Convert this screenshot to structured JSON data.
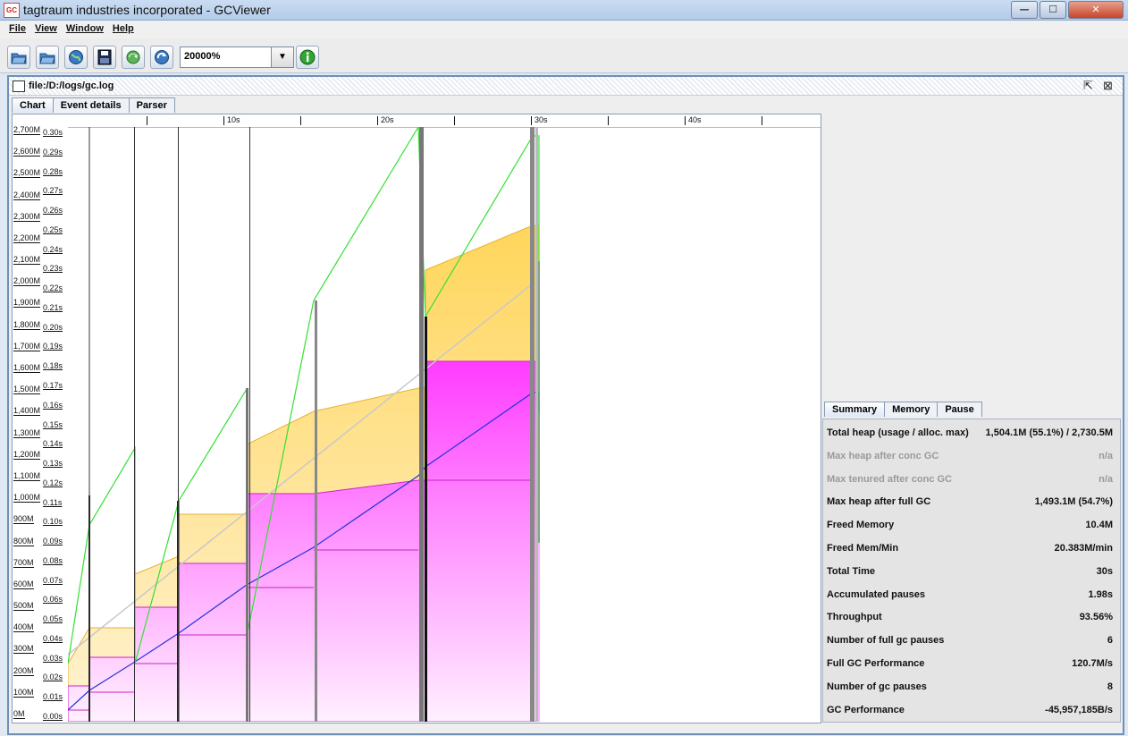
{
  "window": {
    "title": "tagtraum industries incorporated - GCViewer",
    "app_icon": "GC",
    "minimize": "—",
    "maximize": "☐",
    "close": "✕"
  },
  "menu": [
    "File",
    "View",
    "Window",
    "Help"
  ],
  "toolbar": {
    "zoom_value": "20000%"
  },
  "document": {
    "path": "file:/D:/logs/gc.log"
  },
  "tabs": [
    "Chart",
    "Event details",
    "Parser"
  ],
  "timeline": [
    "10s",
    "20s",
    "30s",
    "40s"
  ],
  "y_memory_labels": [
    "2,700M",
    "2,600M",
    "2,500M",
    "2,400M",
    "2,300M",
    "2,200M",
    "2,100M",
    "2,000M",
    "1,900M",
    "1,800M",
    "1,700M",
    "1,600M",
    "1,500M",
    "1,400M",
    "1,300M",
    "1,200M",
    "1,100M",
    "1,000M",
    "900M",
    "800M",
    "700M",
    "600M",
    "500M",
    "400M",
    "300M",
    "200M",
    "100M",
    "0M"
  ],
  "y_time_labels": [
    "0.30s",
    "0.29s",
    "0.28s",
    "0.27s",
    "0.26s",
    "0.25s",
    "0.24s",
    "0.23s",
    "0.22s",
    "0.21s",
    "0.20s",
    "0.19s",
    "0.18s",
    "0.17s",
    "0.16s",
    "0.15s",
    "0.14s",
    "0.13s",
    "0.12s",
    "0.11s",
    "0.10s",
    "0.09s",
    "0.08s",
    "0.07s",
    "0.06s",
    "0.05s",
    "0.04s",
    "0.03s",
    "0.02s",
    "0.01s",
    "0.00s"
  ],
  "summary_tabs": [
    "Summary",
    "Memory",
    "Pause"
  ],
  "summary": [
    {
      "label": "Total heap (usage / alloc. max)",
      "value": "1,504.1M (55.1%) / 2,730.5M",
      "enabled": true
    },
    {
      "label": "Max heap after conc GC",
      "value": "n/a",
      "enabled": false
    },
    {
      "label": "Max tenured after conc GC",
      "value": "n/a",
      "enabled": false
    },
    {
      "label": "Max heap after full GC",
      "value": "1,493.1M (54.7%)",
      "enabled": true
    },
    {
      "label": "Freed Memory",
      "value": "10.4M",
      "enabled": true
    },
    {
      "label": "Freed Mem/Min",
      "value": "20.383M/min",
      "enabled": true
    },
    {
      "label": "Total Time",
      "value": "30s",
      "enabled": true
    },
    {
      "label": "Accumulated pauses",
      "value": "1.98s",
      "enabled": true
    },
    {
      "label": "Throughput",
      "value": "93.56%",
      "enabled": true
    },
    {
      "label": "Number of full gc pauses",
      "value": "6",
      "enabled": true
    },
    {
      "label": "Full GC Performance",
      "value": "120.7M/s",
      "enabled": true
    },
    {
      "label": "Number of gc pauses",
      "value": "8",
      "enabled": true
    },
    {
      "label": "GC Performance",
      "value": "-45,957,185B/s",
      "enabled": true
    }
  ]
}
